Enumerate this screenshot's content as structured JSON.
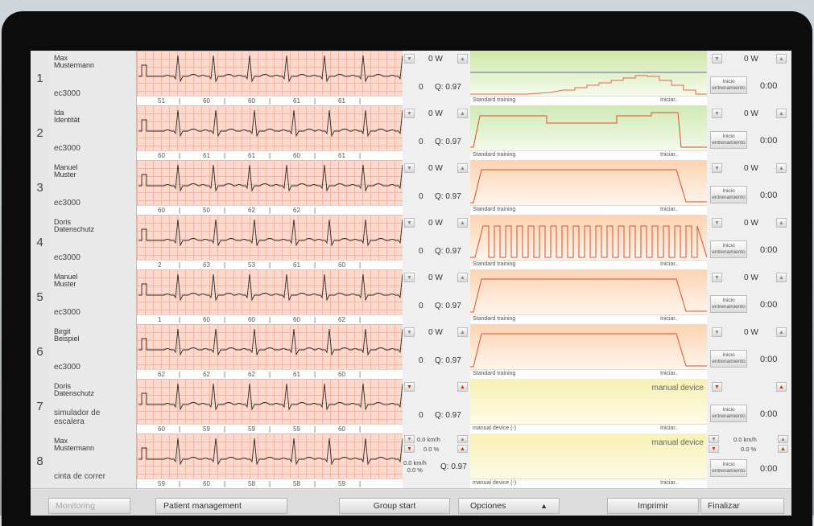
{
  "colors": {
    "ecg_bg": "#fbd9cc",
    "ecg_grid": "#f4b6a3",
    "profile_green": "#d7ecb8",
    "profile_orange": "#fbd3b1",
    "profile_yellow": "#f7f1b4",
    "profile_line": "#e24a28"
  },
  "rows": [
    {
      "num": "1",
      "name": "Max\nMustermann",
      "device": "ec3000",
      "hr": [
        "51",
        "60",
        "60",
        "61",
        "61"
      ],
      "watt": "0 W",
      "value": "0",
      "q": "Q: 0.97",
      "profile_label": "Standard training",
      "profile_start": "Iniciar..",
      "profile_type": "standard-green",
      "watt_right": "0 W",
      "start_btn": "Inicio\nentrenamiento",
      "time": "0:00"
    },
    {
      "num": "2",
      "name": "Ida\nIdentität",
      "device": "ec3000",
      "hr": [
        "60",
        "61",
        "61",
        "60",
        "61"
      ],
      "watt": "0 W",
      "value": "0",
      "q": "Q: 0.97",
      "profile_label": "Standard training",
      "profile_start": "Iniciar..",
      "profile_type": "steps",
      "watt_right": "0 W",
      "start_btn": "Inicio\nentrenamiento",
      "time": "0:00"
    },
    {
      "num": "3",
      "name": "Manuel\nMuster",
      "device": "ec3000",
      "hr": [
        "60",
        "50",
        "62",
        "62"
      ],
      "watt": "0 W",
      "value": "0",
      "q": "Q: 0.97",
      "profile_label": "Standard training",
      "profile_start": "Iniciar..",
      "profile_type": "plateau",
      "watt_right": "0 W",
      "start_btn": "Inicio\nentrenamiento",
      "time": "0:00"
    },
    {
      "num": "4",
      "name": "Doris\nDatenschutz",
      "device": "ec3000",
      "hr": [
        "2",
        "63",
        "53",
        "61",
        "60"
      ],
      "watt": "0 W",
      "value": "0",
      "q": "Q: 0.97",
      "profile_label": "Standard training",
      "profile_start": "Iniciar..",
      "profile_type": "interval",
      "watt_right": "0 W",
      "start_btn": "Inicio\nentrenamiento",
      "time": "0:00"
    },
    {
      "num": "5",
      "name": "Manuel\nMuster",
      "device": "ec3000",
      "hr": [
        "1",
        "60",
        "60",
        "60",
        "62"
      ],
      "watt": "0 W",
      "value": "0",
      "q": "Q: 0.97",
      "profile_label": "Standard training",
      "profile_start": "Iniciar..",
      "profile_type": "plateau",
      "watt_right": "0 W",
      "start_btn": "Inicio\nentrenamiento",
      "time": "0:00"
    },
    {
      "num": "6",
      "name": "Birgit\nBeispiel",
      "device": "ec3000",
      "hr": [
        "62",
        "62",
        "62",
        "61",
        "60"
      ],
      "watt": "0 W",
      "value": "0",
      "q": "Q: 0.97",
      "profile_label": "Standard training",
      "profile_start": "Iniciar..",
      "profile_type": "plateau",
      "watt_right": "0 W",
      "start_btn": "Inicio\nentrenamiento",
      "time": "0:00"
    },
    {
      "num": "7",
      "name": "Doris\nDatenschutz",
      "device": "simulador de\nescalera",
      "hr": [
        "60",
        "59",
        "59",
        "59",
        "60"
      ],
      "watt": "",
      "value": "0",
      "q": "Q: 0.97",
      "profile_label": "manual device (-)",
      "profile_start": "Iniciar..",
      "profile_type": "manual",
      "manual": "manual device",
      "watt_right": "",
      "start_btn": "Inicio\nentrenamiento",
      "time": "0:00"
    },
    {
      "num": "8",
      "name": "Max\nMustermann",
      "device": "cinta de correr",
      "hr": [
        "59",
        "60",
        "58",
        "58",
        "59"
      ],
      "speed": "0.0 km/h",
      "incline": "0.0 %",
      "value_lines": "0.0 km/h\n0.0 %",
      "q": "Q: 0.97",
      "profile_label": "manual device (-)",
      "profile_start": "Iniciar..",
      "profile_type": "manual",
      "manual": "manual device",
      "speed_right": "0.0 km/h",
      "incline_right": "0.0 %",
      "start_btn": "Inicio\nentrenamiento",
      "time": "0:00"
    }
  ],
  "toolbar": {
    "monitoring": "Monitoring",
    "patient_management": "Patient management",
    "group_start": "Group start",
    "opciones": "Opciones",
    "imprimir": "Imprimir",
    "finalizar": "Finalizar"
  }
}
